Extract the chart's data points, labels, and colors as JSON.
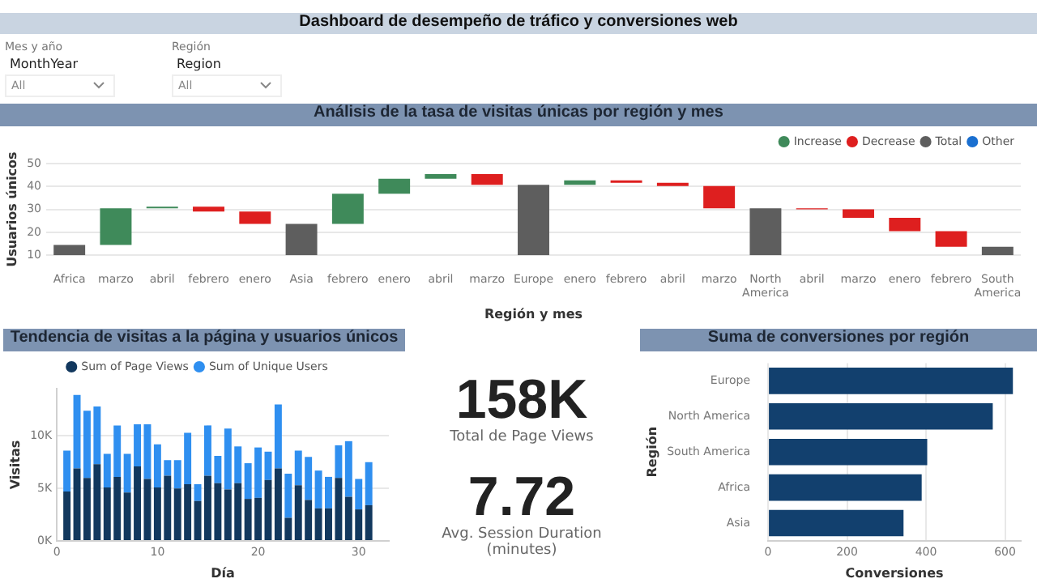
{
  "chart_data": [
    {
      "type": "other",
      "title": "Dashboard de desempeño de tráfico y conversiones web",
      "annotations": [
        "Mes y año",
        "MonthYear",
        "All",
        "Región",
        "Region",
        "All"
      ]
    },
    {
      "type": "bar",
      "title": "Análisis de la tasa de visitas únicas por región y mes",
      "xlabel": "Región y mes",
      "ylabel": "Usuarios únicos",
      "categories": [
        "Africa",
        "marzo",
        "abril",
        "febrero",
        "enero",
        "Asia",
        "febrero",
        "enero",
        "abril",
        "marzo",
        "Europe",
        "enero",
        "febrero",
        "abril",
        "marzo",
        "North America",
        "abril",
        "marzo",
        "enero",
        "febrero",
        "South America"
      ],
      "series": [
        {
          "name": "Increase",
          "color": "#3f8a5a",
          "base": [
            null,
            14.5,
            30.5,
            null,
            null,
            null,
            23.7,
            36.8,
            43.4,
            null,
            null,
            40.7,
            null,
            null,
            null,
            null,
            null,
            null,
            null,
            null,
            null
          ],
          "values": [
            null,
            16,
            0.7,
            null,
            null,
            null,
            13.1,
            6.6,
            2,
            null,
            null,
            2,
            null,
            null,
            null,
            null,
            null,
            null,
            null,
            null,
            null
          ]
        },
        {
          "name": "Decrease",
          "color": "#de1f1f",
          "base": [
            null,
            null,
            null,
            31.2,
            29.1,
            null,
            null,
            null,
            null,
            45.4,
            null,
            null,
            42.7,
            41.6,
            40.2,
            null,
            30.5,
            30,
            26.3,
            20.5,
            null
          ],
          "values": [
            null,
            null,
            null,
            -2.1,
            -5.4,
            null,
            null,
            null,
            null,
            -4.7,
            null,
            null,
            -1.1,
            -1.4,
            -9.7,
            null,
            -0.5,
            -3.7,
            -5.8,
            -6.8,
            null
          ]
        },
        {
          "name": "Total",
          "color": "#5e5e5e",
          "base": [
            10,
            null,
            null,
            null,
            null,
            10,
            null,
            null,
            null,
            null,
            10,
            null,
            null,
            null,
            null,
            10,
            null,
            null,
            null,
            null,
            10
          ],
          "values": [
            4.5,
            null,
            null,
            null,
            null,
            13.7,
            null,
            null,
            null,
            null,
            30.7,
            null,
            null,
            null,
            null,
            20.5,
            null,
            null,
            null,
            null,
            3.7
          ]
        },
        {
          "name": "Other",
          "color": "#1a6fd0",
          "values": [
            null,
            null,
            null,
            null,
            null,
            null,
            null,
            null,
            null,
            null,
            null,
            null,
            null,
            null,
            null,
            null,
            null,
            null,
            null,
            null,
            null
          ]
        }
      ],
      "ylim": [
        10,
        50
      ],
      "yticks": [
        10,
        20,
        30,
        40,
        50
      ],
      "grid": "y",
      "legend": "top right"
    },
    {
      "type": "bar",
      "title": "Tendencia de visitas a la página y usuarios únicos",
      "xlabel": "Día",
      "ylabel": "Visitas",
      "stacked": true,
      "x": [
        1,
        2,
        3,
        4,
        5,
        6,
        7,
        8,
        9,
        10,
        11,
        12,
        13,
        14,
        15,
        16,
        17,
        18,
        19,
        20,
        21,
        22,
        23,
        24,
        25,
        26,
        27,
        28,
        29,
        30,
        31
      ],
      "series": [
        {
          "name": "Sum of Page Views",
          "color": "#12385e",
          "values": [
            4700,
            6900,
            6000,
            7300,
            5100,
            6100,
            4600,
            7100,
            5900,
            5100,
            6200,
            5000,
            5400,
            3800,
            6200,
            5500,
            4900,
            5500,
            4000,
            4100,
            5800,
            6900,
            2200,
            5300,
            3900,
            3100,
            3100,
            6000,
            4200,
            3000,
            3400
          ]
        },
        {
          "name": "Sum of Unique Users",
          "color": "#2f8ff0",
          "values": [
            3900,
            7000,
            6400,
            5500,
            3200,
            4900,
            3700,
            4000,
            5200,
            4100,
            1500,
            2700,
            4900,
            1600,
            4800,
            2600,
            5800,
            3500,
            3400,
            4800,
            2700,
            6100,
            4200,
            3300,
            4100,
            3600,
            3000,
            3100,
            5300,
            2900,
            4100
          ]
        }
      ],
      "xlim": [
        0,
        33
      ],
      "xticks": [
        0,
        10,
        20,
        30
      ],
      "ylim": [
        0,
        14500
      ],
      "yticks": [
        {
          "value": 0,
          "label": "0K"
        },
        {
          "value": 5000,
          "label": "5K"
        },
        {
          "value": 10000,
          "label": "10K"
        }
      ],
      "grid": "y",
      "legend": "top"
    },
    {
      "type": "other",
      "annotations": [
        "158K",
        "Total de Page Views",
        "7.72",
        "Avg. Session Duration (minutes)"
      ]
    },
    {
      "type": "bar",
      "orientation": "horizontal",
      "title": "Suma de conversiones por región",
      "xlabel": "Conversiones",
      "ylabel": "Región",
      "categories": [
        "Europe",
        "North America",
        "South America",
        "Africa",
        "Asia"
      ],
      "values": [
        620,
        569,
        403,
        389,
        343
      ],
      "color": "#12406e",
      "xlim": [
        0,
        640
      ],
      "xticks": [
        0,
        200,
        400,
        600
      ],
      "grid": "x"
    }
  ]
}
